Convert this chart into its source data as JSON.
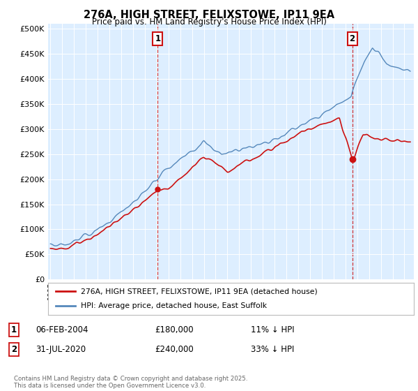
{
  "title": "276A, HIGH STREET, FELIXSTOWE, IP11 9EA",
  "subtitle": "Price paid vs. HM Land Registry's House Price Index (HPI)",
  "ylabel_ticks": [
    "£0",
    "£50K",
    "£100K",
    "£150K",
    "£200K",
    "£250K",
    "£300K",
    "£350K",
    "£400K",
    "£450K",
    "£500K"
  ],
  "ytick_values": [
    0,
    50000,
    100000,
    150000,
    200000,
    250000,
    300000,
    350000,
    400000,
    450000,
    500000
  ],
  "ylim": [
    0,
    510000
  ],
  "hpi_color": "#5588bb",
  "hpi_fill_color": "#ccddf0",
  "price_color": "#cc1111",
  "marker1_date_label": "06-FEB-2004",
  "marker1_price": 180000,
  "marker1_pct": "11% ↓ HPI",
  "marker2_date_label": "31-JUL-2020",
  "marker2_price": 240000,
  "marker2_pct": "33% ↓ HPI",
  "marker1_x": 2004.09,
  "marker2_x": 2020.58,
  "legend_line1": "276A, HIGH STREET, FELIXSTOWE, IP11 9EA (detached house)",
  "legend_line2": "HPI: Average price, detached house, East Suffolk",
  "footer": "Contains HM Land Registry data © Crown copyright and database right 2025.\nThis data is licensed under the Open Government Licence v3.0.",
  "fig_bg_color": "#ffffff",
  "plot_bg_color": "#ddeeff"
}
